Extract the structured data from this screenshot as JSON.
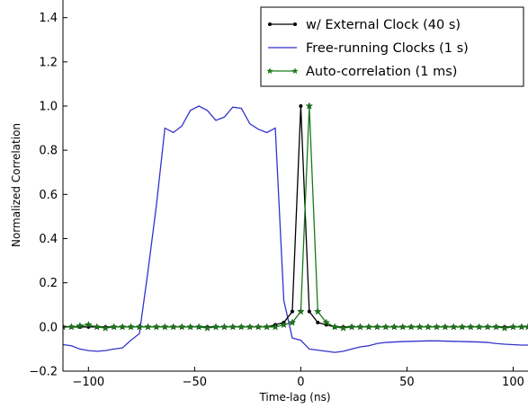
{
  "chart_data": {
    "type": "line",
    "title": "",
    "xlabel": "Time-lag (ns)",
    "ylabel": "Normalized Correlation",
    "xlim": [
      -112,
      107
    ],
    "ylim": [
      -0.2,
      1.48
    ],
    "x_ticks": [
      -100,
      -50,
      0,
      50,
      100
    ],
    "x_tick_labels": [
      "−100",
      "−50",
      "0",
      "50",
      "100"
    ],
    "y_ticks": [
      -0.2,
      0.0,
      0.2,
      0.4,
      0.6,
      0.8,
      1.0,
      1.2,
      1.4
    ],
    "y_tick_labels": [
      "−0.2",
      "0.0",
      "0.2",
      "0.4",
      "0.6",
      "0.8",
      "1.0",
      "1.2",
      "1.4"
    ],
    "grid": false,
    "legend_position": "top-right",
    "series": [
      {
        "name": "Free-running Clocks (1 s)",
        "color": "#3333cc",
        "marker": "none",
        "x": [
          -112,
          -108,
          -104,
          -100,
          -96,
          -92,
          -88,
          -84,
          -80,
          -76,
          -72,
          -68,
          -64,
          -60,
          -56,
          -52,
          -48,
          -44,
          -40,
          -36,
          -32,
          -28,
          -24,
          -20,
          -16,
          -12,
          -8,
          -4,
          0,
          4,
          8,
          12,
          16,
          20,
          24,
          28,
          32,
          36,
          40,
          44,
          48,
          52,
          56,
          60,
          64,
          68,
          72,
          76,
          80,
          84,
          88,
          92,
          96,
          100,
          104,
          107
        ],
        "y": [
          -0.08,
          -0.085,
          -0.1,
          -0.107,
          -0.11,
          -0.107,
          -0.1,
          -0.095,
          -0.06,
          -0.03,
          0.25,
          0.55,
          0.9,
          0.88,
          0.91,
          0.98,
          1.0,
          0.98,
          0.935,
          0.95,
          0.995,
          0.99,
          0.92,
          0.895,
          0.88,
          0.9,
          0.12,
          -0.05,
          -0.06,
          -0.1,
          -0.105,
          -0.11,
          -0.115,
          -0.11,
          -0.1,
          -0.09,
          -0.085,
          -0.075,
          -0.07,
          -0.068,
          -0.066,
          -0.065,
          -0.064,
          -0.063,
          -0.063,
          -0.064,
          -0.065,
          -0.066,
          -0.067,
          -0.068,
          -0.07,
          -0.075,
          -0.078,
          -0.08,
          -0.082,
          -0.082
        ]
      },
      {
        "name": "w/ External Clock (40 s)",
        "color": "#000000",
        "marker": "dot",
        "x": [
          -112,
          -108,
          -104,
          -100,
          -96,
          -92,
          -88,
          -84,
          -80,
          -76,
          -72,
          -68,
          -64,
          -60,
          -56,
          -52,
          -48,
          -44,
          -40,
          -36,
          -32,
          -28,
          -24,
          -20,
          -16,
          -12,
          -8,
          -4,
          0,
          4,
          8,
          12,
          16,
          20,
          24,
          28,
          32,
          36,
          40,
          44,
          48,
          52,
          56,
          60,
          64,
          68,
          72,
          76,
          80,
          84,
          88,
          92,
          96,
          100,
          104,
          107
        ],
        "y": [
          0.0,
          0.0,
          0.0,
          0.0,
          0.0,
          0.0,
          0.0,
          0.0,
          0.0,
          0.0,
          0.0,
          0.0,
          0.0,
          0.0,
          0.0,
          0.0,
          0.0,
          0.0,
          0.0,
          0.0,
          0.0,
          0.0,
          0.0,
          0.0,
          0.0,
          0.01,
          0.02,
          0.07,
          1.0,
          0.07,
          0.02,
          0.01,
          0.0,
          0.0,
          0.0,
          0.0,
          0.0,
          0.0,
          0.0,
          0.0,
          0.0,
          0.0,
          0.0,
          0.0,
          0.0,
          0.0,
          0.0,
          0.0,
          0.0,
          0.0,
          0.0,
          0.0,
          0.0,
          0.0,
          0.0,
          0.0
        ]
      },
      {
        "name": "Auto-correlation (1 ms)",
        "color": "#1a7a1a",
        "marker": "star",
        "x": [
          -112,
          -108,
          -104,
          -100,
          -96,
          -92,
          -88,
          -84,
          -80,
          -76,
          -72,
          -68,
          -64,
          -60,
          -56,
          -52,
          -48,
          -44,
          -40,
          -36,
          -32,
          -28,
          -24,
          -20,
          -16,
          -12,
          -8,
          -4,
          0,
          4,
          8,
          12,
          16,
          20,
          24,
          28,
          32,
          36,
          40,
          44,
          48,
          52,
          56,
          60,
          64,
          68,
          72,
          76,
          80,
          84,
          88,
          92,
          96,
          100,
          104,
          107
        ],
        "y": [
          0.0,
          0.0,
          0.005,
          0.01,
          0.0,
          -0.005,
          0.0,
          0.0,
          0.0,
          0.0,
          0.0,
          0.0,
          0.0,
          0.0,
          0.0,
          0.0,
          0.0,
          -0.005,
          0.0,
          0.0,
          0.0,
          0.0,
          0.0,
          0.0,
          0.0,
          0.0,
          0.01,
          0.02,
          0.07,
          1.0,
          0.07,
          0.02,
          0.0,
          -0.005,
          0.0,
          0.0,
          0.0,
          0.0,
          0.0,
          0.0,
          0.0,
          0.0,
          0.0,
          0.0,
          0.0,
          0.0,
          0.0,
          0.0,
          0.0,
          0.0,
          0.0,
          0.0,
          -0.005,
          0.0,
          0.0,
          0.0
        ]
      }
    ]
  }
}
